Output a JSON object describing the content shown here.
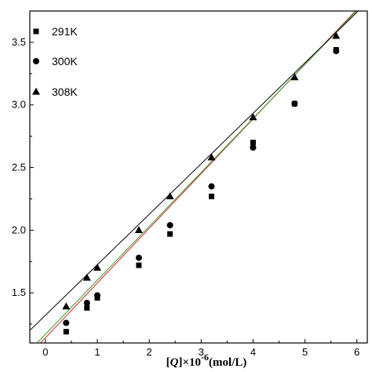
{
  "chart_data": {
    "type": "scatter",
    "xlabel_parts": {
      "open": "[",
      "var": "Q",
      "close": "]×10",
      "exp": "-6",
      "unit": "(mol/L)"
    },
    "ylabel": "",
    "xlim": [
      -0.3,
      6.2
    ],
    "ylim": [
      1.1,
      3.75
    ],
    "x_ticks": [
      0,
      1,
      2,
      3,
      4,
      5,
      6
    ],
    "y_ticks": [
      1.5,
      2.0,
      2.5,
      3.0,
      3.5
    ],
    "legend_position": "top-left",
    "series": [
      {
        "name": "291K",
        "marker": "square",
        "x": [
          0.4,
          0.8,
          1.0,
          1.8,
          2.4,
          3.2,
          4.0,
          4.8,
          5.6
        ],
        "y": [
          1.19,
          1.38,
          1.46,
          1.72,
          1.97,
          2.27,
          2.7,
          3.01,
          3.44
        ],
        "fit": {
          "x": [
            -0.3,
            6.2
          ],
          "y": [
            1.01,
            3.85
          ],
          "color": "#d62728"
        }
      },
      {
        "name": "300K",
        "marker": "circle",
        "x": [
          0.4,
          0.8,
          1.0,
          1.8,
          2.4,
          3.2,
          4.0,
          4.8,
          5.6
        ],
        "y": [
          1.26,
          1.42,
          1.48,
          1.78,
          2.04,
          2.35,
          2.66,
          3.01,
          3.43
        ],
        "fit": {
          "x": [
            -0.3,
            6.2
          ],
          "y": [
            1.04,
            3.84
          ],
          "color": "#2ca02c"
        }
      },
      {
        "name": "308K",
        "marker": "triangle",
        "x": [
          0.4,
          0.8,
          1.0,
          1.8,
          2.4,
          3.2,
          4.0,
          4.8,
          5.6
        ],
        "y": [
          1.39,
          1.62,
          1.7,
          2.0,
          2.27,
          2.58,
          2.9,
          3.22,
          3.55
        ],
        "fit": {
          "x": [
            -0.3,
            6.2
          ],
          "y": [
            1.2,
            3.82
          ],
          "color": "#000000"
        }
      }
    ]
  }
}
